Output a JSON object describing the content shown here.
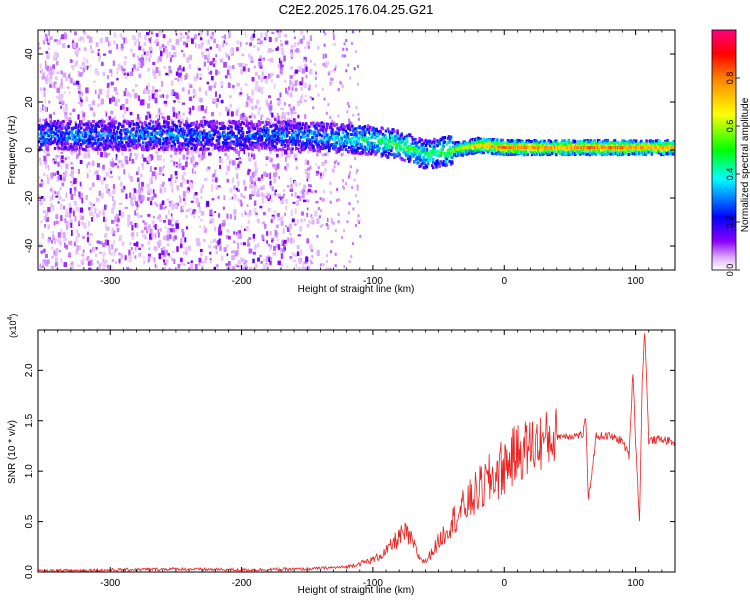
{
  "title": "C2E2.2025.176.04.25.G21",
  "chart_data": [
    {
      "type": "heatmap",
      "xlabel": "Height of straight line (km)",
      "ylabel": "Frequency (Hz)",
      "xlim": [
        -355,
        130
      ],
      "ylim": [
        -50,
        50
      ],
      "xticks": [
        -300,
        -200,
        -100,
        0,
        100
      ],
      "yticks": [
        -40,
        -20,
        0,
        20,
        40
      ],
      "colorbar": {
        "label": "Normalized spectral amplitude",
        "range": [
          0.0,
          1.0
        ],
        "ticks": [
          "0.0",
          "0.2",
          "0.4",
          "0.6",
          "0.8"
        ],
        "tick_values": [
          0.0,
          0.2,
          0.4,
          0.6,
          0.8
        ],
        "colormap": [
          "#ffffff",
          "#7a00e6",
          "#0000ff",
          "#00ffff",
          "#00ff00",
          "#ffff00",
          "#ff8000",
          "#ff0000",
          "#ff0080"
        ]
      },
      "ridge": {
        "x": [
          -340,
          -300,
          -250,
          -200,
          -160,
          -130,
          -100,
          -80,
          -60,
          -40,
          -20,
          0,
          40,
          80,
          130
        ],
        "frequency": [
          6,
          6,
          6,
          6,
          6,
          5,
          4,
          2,
          -2,
          0,
          2,
          1,
          1,
          1,
          1
        ],
        "amplitude": [
          0.3,
          0.3,
          0.3,
          0.25,
          0.3,
          0.35,
          0.45,
          0.5,
          0.45,
          0.55,
          0.7,
          0.8,
          0.75,
          0.8,
          0.7
        ]
      },
      "noise_region_x": [
        -355,
        -150
      ]
    },
    {
      "type": "line",
      "xlabel": "Height of straight line (km)",
      "ylabel": "SNR (10 * v/v)",
      "y_multiplier": "(x10",
      "y_multiplier_exp": "4",
      "y_multiplier_close": ")",
      "xlim": [
        -355,
        130
      ],
      "ylim": [
        0,
        2.4
      ],
      "xticks": [
        -300,
        -200,
        -100,
        0,
        100
      ],
      "yticks": [
        "0.0",
        "0.5",
        "1.0",
        "1.5",
        "2.0"
      ],
      "ytick_values": [
        0.0,
        0.5,
        1.0,
        1.5,
        2.0
      ],
      "color": "#ee2222",
      "series": [
        {
          "x": [
            -355,
            -300,
            -250,
            -200,
            -150,
            -120,
            -100,
            -90,
            -80,
            -75,
            -70,
            -65,
            -60,
            -50,
            -40,
            -30,
            -20,
            -10,
            0,
            10,
            20,
            30,
            40,
            50,
            60,
            62,
            64,
            70,
            80,
            90,
            95,
            98,
            100,
            103,
            105,
            107,
            110,
            120,
            130
          ],
          "y": [
            0.01,
            0.02,
            0.03,
            0.02,
            0.03,
            0.05,
            0.12,
            0.2,
            0.35,
            0.38,
            0.3,
            0.15,
            0.1,
            0.3,
            0.5,
            0.65,
            0.8,
            0.92,
            1.05,
            1.18,
            1.25,
            1.3,
            1.35,
            1.35,
            1.36,
            1.55,
            0.7,
            1.35,
            1.35,
            1.3,
            1.15,
            2.0,
            1.3,
            0.5,
            1.9,
            2.4,
            1.3,
            1.32,
            1.28
          ]
        }
      ]
    }
  ]
}
